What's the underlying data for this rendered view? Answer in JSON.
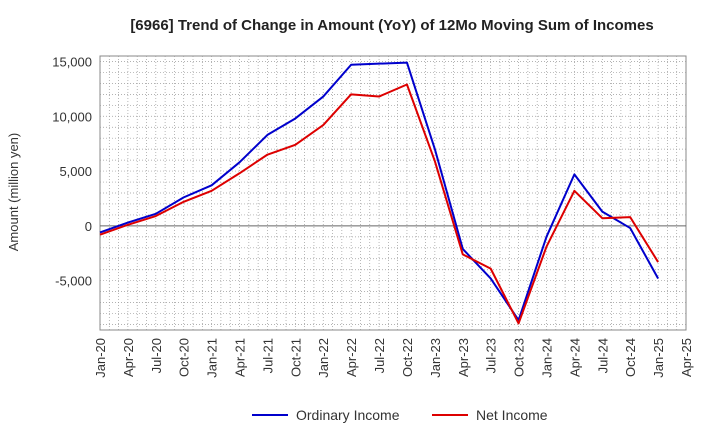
{
  "chart_data": {
    "type": "line",
    "title": "[6966]  Trend of Change in Amount (YoY) of 12Mo Moving Sum of Incomes",
    "ylabel": "Amount (million yen)",
    "xlabel": "",
    "ylim": [
      -9500,
      15500
    ],
    "yticks": [
      -5000,
      0,
      5000,
      10000,
      15000
    ],
    "ytick_labels": [
      "-5,000",
      "0",
      "5,000",
      "10,000",
      "15,000"
    ],
    "categories": [
      "Jan-20",
      "Apr-20",
      "Jul-20",
      "Oct-20",
      "Jan-21",
      "Apr-21",
      "Jul-21",
      "Oct-21",
      "Jan-22",
      "Apr-22",
      "Jul-22",
      "Oct-22",
      "Jan-23",
      "Apr-23",
      "Jul-23",
      "Oct-23",
      "Jan-24",
      "Apr-24",
      "Jul-24",
      "Oct-24",
      "Jan-25",
      "Apr-25"
    ],
    "grid": true,
    "legend_position": "bottom",
    "series": [
      {
        "name": "Ordinary Income",
        "color": "#0000cc",
        "values": [
          -600,
          300,
          1100,
          2600,
          3700,
          5800,
          8300,
          9800,
          11800,
          14700,
          14800,
          14900,
          7000,
          -2100,
          -4800,
          -8600,
          -1000,
          4700,
          1300,
          -200,
          -4800,
          null
        ]
      },
      {
        "name": "Net Income",
        "color": "#dd0000",
        "values": [
          -800,
          100,
          900,
          2200,
          3200,
          4800,
          6500,
          7400,
          9200,
          12000,
          11800,
          12900,
          5900,
          -2600,
          -3900,
          -8900,
          -1900,
          3200,
          700,
          800,
          -3300,
          null
        ]
      }
    ]
  }
}
